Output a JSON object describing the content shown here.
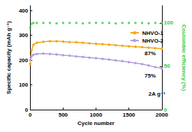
{
  "chart_data": {
    "type": "line",
    "x_label": "Cycle number",
    "y_label": "Specific capacity (mAh g⁻¹)",
    "y2_label": "Coulombic efficiency (%)",
    "x": [
      1,
      20,
      50,
      100,
      200,
      300,
      400,
      500,
      600,
      700,
      800,
      900,
      1000,
      1100,
      1200,
      1300,
      1400,
      1500,
      1600,
      1700,
      1800,
      1900,
      2000
    ],
    "series": [
      {
        "name": "NHVO-1",
        "color": "#f5a614",
        "marker": "circle",
        "line_style": "solid",
        "values": [
          185,
          240,
          262,
          270,
          274,
          276,
          276,
          275,
          273,
          272,
          270,
          268,
          266,
          264,
          262,
          260,
          258,
          256,
          254,
          252,
          250,
          248,
          246
        ]
      },
      {
        "name": "NHVO-2",
        "color": "#b39ddb",
        "marker": "circle",
        "line_style": "solid",
        "values": [
          200,
          215,
          222,
          225,
          226,
          225,
          223,
          220,
          218,
          215,
          213,
          210,
          208,
          205,
          202,
          199,
          196,
          192,
          188,
          184,
          178,
          172,
          166
        ]
      },
      {
        "color": "#2ecc40",
        "type": "scatter",
        "marker": "square",
        "axis": "y2",
        "values": [
          95,
          99,
          100,
          100,
          100,
          100,
          99.5,
          100,
          100,
          100,
          99.5,
          100,
          100,
          100,
          100,
          99.5,
          100,
          100,
          100,
          100,
          99.5,
          100,
          100
        ]
      }
    ],
    "xlim": [
      0,
      2000
    ],
    "xticks": [
      0,
      500,
      1000,
      1500,
      2000
    ],
    "ylim": [
      0,
      420
    ],
    "yticks": [
      0,
      100,
      200,
      300,
      400
    ],
    "y2lim": [
      0,
      120
    ],
    "y2ticks": [
      0,
      50,
      100
    ],
    "annotations": [
      "87%",
      "75%",
      "2A g⁻¹"
    ],
    "legend": "upper right",
    "grid": false
  }
}
